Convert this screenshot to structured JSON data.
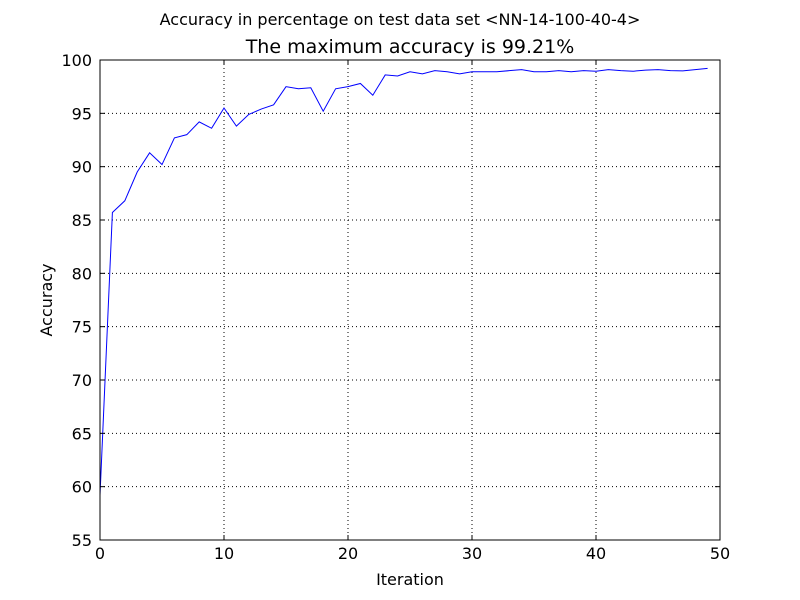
{
  "chart_data": {
    "type": "line",
    "suptitle": "Accuracy in percentage on test data set <NN-14-100-40-4>",
    "title": "The maximum accuracy is 99.21%",
    "xlabel": "Iteration",
    "ylabel": "Accuracy",
    "xlim": [
      0,
      50
    ],
    "ylim": [
      55,
      100
    ],
    "xticks": [
      0,
      10,
      20,
      30,
      40,
      50
    ],
    "yticks": [
      55,
      60,
      65,
      70,
      75,
      80,
      85,
      90,
      95,
      100
    ],
    "grid": true,
    "series_color": "#0000ff",
    "x": [
      0,
      1,
      2,
      3,
      4,
      5,
      6,
      7,
      8,
      9,
      10,
      11,
      12,
      13,
      14,
      15,
      16,
      17,
      18,
      19,
      20,
      21,
      22,
      23,
      24,
      25,
      26,
      27,
      28,
      29,
      30,
      31,
      32,
      33,
      34,
      35,
      36,
      37,
      38,
      39,
      40,
      41,
      42,
      43,
      44,
      45,
      46,
      47,
      48,
      49
    ],
    "y": [
      59.2,
      85.7,
      86.8,
      89.5,
      91.3,
      90.2,
      92.7,
      93.0,
      94.2,
      93.6,
      95.5,
      93.8,
      94.9,
      95.4,
      95.8,
      97.5,
      97.3,
      97.4,
      95.2,
      97.3,
      97.5,
      97.8,
      96.7,
      98.6,
      98.5,
      98.9,
      98.7,
      99.0,
      98.9,
      98.7,
      98.9,
      98.9,
      98.9,
      99.0,
      99.1,
      98.9,
      98.9,
      99.0,
      98.9,
      99.0,
      98.95,
      99.1,
      99.0,
      98.95,
      99.05,
      99.1,
      99.0,
      98.98,
      99.1,
      99.21
    ]
  }
}
